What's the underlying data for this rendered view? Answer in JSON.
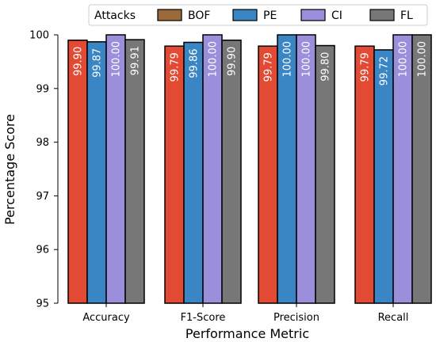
{
  "chart_data": {
    "type": "bar",
    "xlabel": "Performance Metric",
    "ylabel": "Percentage Score",
    "ylim": [
      95,
      100
    ],
    "yticks": [
      95,
      96,
      97,
      98,
      99,
      100
    ],
    "categories": [
      "Accuracy",
      "F1-Score",
      "Precision",
      "Recall"
    ],
    "legend_title": "Attacks",
    "legend_position": "top-center",
    "grid": false,
    "series": [
      {
        "name": "BOF",
        "legend_color": "#9B6A3A",
        "color": "#E34A33",
        "values": [
          99.9,
          99.79,
          99.79,
          99.79
        ],
        "labels": [
          "99.90",
          "99.79",
          "99.79",
          "99.79"
        ],
        "label_color": "#ffffff"
      },
      {
        "name": "PE",
        "legend_color": "#3A86C4",
        "color": "#3A86C4",
        "values": [
          99.87,
          99.86,
          100.0,
          99.72
        ],
        "labels": [
          "99.87",
          "99.86",
          "100.00",
          "99.72"
        ],
        "label_color": "#ffffff"
      },
      {
        "name": "CI",
        "legend_color": "#9B8FDB",
        "color": "#9B8FDB",
        "values": [
          100.0,
          100.0,
          100.0,
          100.0
        ],
        "labels": [
          "100.00",
          "100.00",
          "100.00",
          "100.00"
        ],
        "label_color": "#ffffff"
      },
      {
        "name": "FL",
        "legend_color": "#777777",
        "color": "#777777",
        "values": [
          99.91,
          99.9,
          99.8,
          100.0
        ],
        "labels": [
          "99.91",
          "99.90",
          "99.80",
          "100.00"
        ],
        "label_color": "#ffffff"
      }
    ]
  }
}
